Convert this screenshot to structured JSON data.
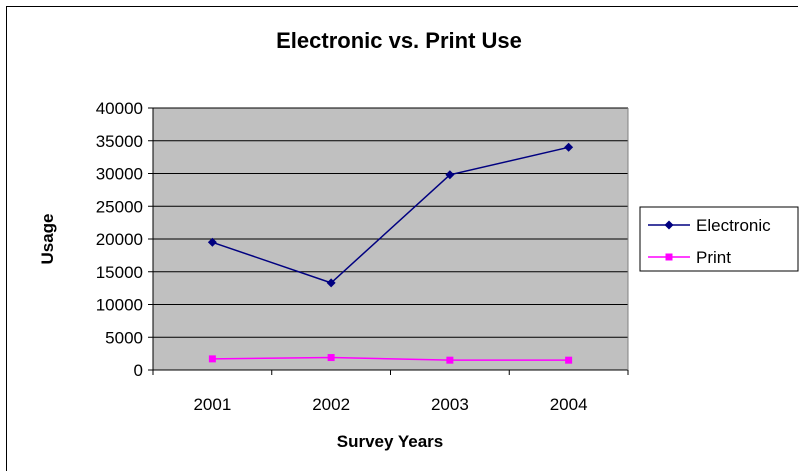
{
  "chart_data": {
    "type": "line",
    "title": "Electronic vs. Print Use",
    "xlabel": "Survey Years",
    "ylabel": "Usage",
    "categories": [
      "2001",
      "2002",
      "2003",
      "2004"
    ],
    "ylim": [
      0,
      40000
    ],
    "yticks": [
      0,
      5000,
      10000,
      15000,
      20000,
      25000,
      30000,
      35000,
      40000
    ],
    "ytick_labels": [
      "0",
      "5000",
      "10000",
      "15000",
      "20000",
      "25000",
      "30000",
      "35000",
      "40000"
    ],
    "grid": true,
    "legend_position": "right",
    "plot_background": "#c0c0c0",
    "series": [
      {
        "name": "Electronic",
        "values": [
          19500,
          13300,
          29800,
          34000
        ],
        "color": "#000080",
        "marker": "diamond"
      },
      {
        "name": "Print",
        "values": [
          1700,
          1900,
          1500,
          1500
        ],
        "color": "#ff00ff",
        "marker": "square"
      }
    ]
  }
}
